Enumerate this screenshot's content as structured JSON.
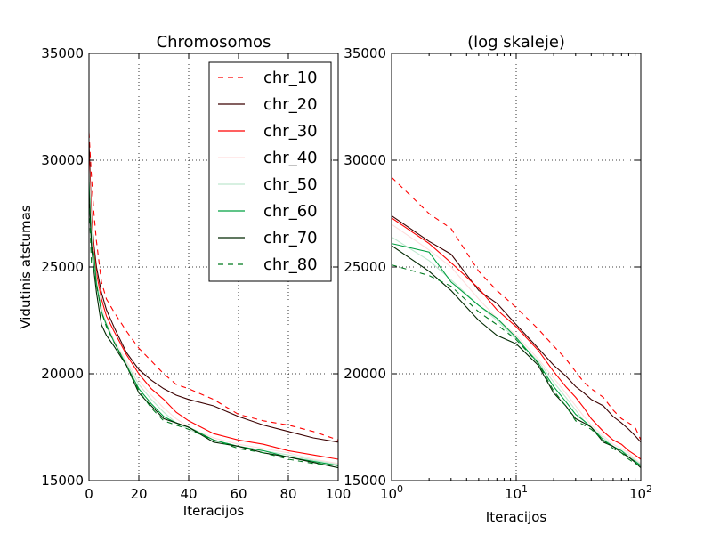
{
  "chart_data": [
    {
      "type": "line",
      "title": "Chromosomos",
      "xlabel": "Iteracijos",
      "ylabel": "Vidutinis atstumas",
      "xscale": "linear",
      "xlim": [
        0,
        100
      ],
      "ylim": [
        15000,
        35000
      ],
      "xticks": [
        "0",
        "20",
        "40",
        "60",
        "80",
        "100"
      ],
      "yticks": [
        "15000",
        "20000",
        "25000",
        "30000",
        "35000"
      ],
      "grid": true,
      "legend_position": "top-right",
      "x": [
        0,
        1,
        2,
        3,
        5,
        7,
        10,
        15,
        20,
        25,
        30,
        35,
        40,
        50,
        60,
        70,
        80,
        90,
        100
      ],
      "series": [
        {
          "name": "chr_10",
          "color": "#ff0000",
          "dash": "dashed",
          "values": [
            31300,
            29200,
            27500,
            26200,
            24300,
            23500,
            22900,
            22000,
            21200,
            20600,
            20000,
            19500,
            19300,
            18800,
            18100,
            17800,
            17600,
            17300,
            16900
          ]
        },
        {
          "name": "chr_20",
          "color": "#3b0000",
          "dash": "solid",
          "values": [
            30900,
            27400,
            26000,
            25000,
            23800,
            23000,
            22200,
            21000,
            20200,
            19700,
            19300,
            19000,
            18800,
            18500,
            18000,
            17600,
            17300,
            17000,
            16800
          ]
        },
        {
          "name": "chr_30",
          "color": "#ff0000",
          "dash": "solid",
          "values": [
            30200,
            27300,
            25800,
            24700,
            23500,
            22700,
            22000,
            20900,
            20000,
            19300,
            18800,
            18200,
            17800,
            17200,
            16900,
            16700,
            16400,
            16200,
            16000
          ]
        },
        {
          "name": "chr_40",
          "color": "#ffdede",
          "dash": "solid",
          "values": [
            29800,
            27000,
            25500,
            24500,
            23200,
            22400,
            21600,
            20600,
            19700,
            19000,
            18400,
            17900,
            17500,
            17000,
            16700,
            16500,
            16300,
            16000,
            15800
          ]
        },
        {
          "name": "chr_50",
          "color": "#bfe8cf",
          "dash": "solid",
          "values": [
            29500,
            26800,
            25300,
            24300,
            23000,
            22200,
            21500,
            20500,
            19500,
            18800,
            18200,
            17700,
            17400,
            16900,
            16600,
            16400,
            16200,
            15950,
            15750
          ]
        },
        {
          "name": "chr_60",
          "color": "#00a040",
          "dash": "solid",
          "values": [
            29000,
            26000,
            25600,
            24200,
            22900,
            22300,
            21500,
            20400,
            19300,
            18600,
            18000,
            17700,
            17500,
            16900,
            16600,
            16400,
            16100,
            15900,
            15700
          ]
        },
        {
          "name": "chr_70",
          "color": "#002800",
          "dash": "solid",
          "values": [
            28500,
            26000,
            24800,
            23800,
            22300,
            21800,
            21300,
            20400,
            19100,
            18500,
            17900,
            17700,
            17500,
            16800,
            16600,
            16300,
            16100,
            15850,
            15600
          ]
        },
        {
          "name": "chr_80",
          "color": "#007a1f",
          "dash": "dashed",
          "values": [
            28200,
            25100,
            24900,
            24200,
            22900,
            22200,
            21500,
            20400,
            19200,
            18400,
            17800,
            17600,
            17400,
            16900,
            16500,
            16300,
            16000,
            15800,
            15700
          ]
        }
      ]
    },
    {
      "type": "line",
      "title": "(log skaleje)",
      "xlabel": "Iteracijos",
      "xscale": "log",
      "xlim": [
        1,
        100
      ],
      "ylim": [
        15000,
        35000
      ],
      "xticks": [
        {
          "base": "10",
          "exp": "0"
        },
        {
          "base": "10",
          "exp": "1"
        },
        {
          "base": "10",
          "exp": "2"
        }
      ],
      "yticks": [
        "15000",
        "20000",
        "25000",
        "30000",
        "35000"
      ],
      "grid": true,
      "x": [
        1,
        2,
        3,
        5,
        7,
        10,
        15,
        20,
        25,
        30,
        35,
        40,
        50,
        60,
        70,
        80,
        90,
        100
      ],
      "series": [
        {
          "name": "chr_10",
          "color": "#ff0000",
          "dash": "dashed",
          "values": [
            29200,
            27500,
            26800,
            24800,
            23900,
            23100,
            22100,
            21300,
            20700,
            20100,
            19600,
            19300,
            18900,
            18300,
            17900,
            17700,
            17500,
            16900
          ]
        },
        {
          "name": "chr_20",
          "color": "#3b0000",
          "dash": "solid",
          "values": [
            27400,
            26200,
            25600,
            23900,
            23300,
            22300,
            21200,
            20400,
            19900,
            19400,
            19100,
            18800,
            18500,
            18000,
            17700,
            17400,
            17100,
            16800
          ]
        },
        {
          "name": "chr_30",
          "color": "#ff0000",
          "dash": "solid",
          "values": [
            27300,
            26100,
            25200,
            24000,
            23000,
            22200,
            21100,
            20100,
            19400,
            18900,
            18400,
            17900,
            17300,
            16900,
            16700,
            16400,
            16200,
            16000
          ]
        },
        {
          "name": "chr_40",
          "color": "#ffdede",
          "dash": "solid",
          "values": [
            27000,
            25800,
            25000,
            23500,
            22600,
            21800,
            20700,
            19800,
            19100,
            18500,
            18000,
            17600,
            17100,
            16700,
            16500,
            16300,
            16000,
            15800
          ]
        },
        {
          "name": "chr_50",
          "color": "#bfe8cf",
          "dash": "solid",
          "values": [
            26400,
            25300,
            24400,
            23200,
            22500,
            21600,
            20600,
            19600,
            18900,
            18300,
            17800,
            17500,
            17000,
            16600,
            16400,
            16200,
            15950,
            15750
          ]
        },
        {
          "name": "chr_60",
          "color": "#00a040",
          "dash": "solid",
          "values": [
            26100,
            25700,
            24300,
            23200,
            22600,
            21700,
            20500,
            19400,
            18700,
            18100,
            17800,
            17500,
            16900,
            16600,
            16400,
            16100,
            15900,
            15700
          ]
        },
        {
          "name": "chr_70",
          "color": "#002800",
          "dash": "solid",
          "values": [
            26000,
            24800,
            23900,
            22500,
            21800,
            21400,
            20400,
            19100,
            18500,
            17900,
            17700,
            17500,
            16800,
            16600,
            16300,
            16100,
            15850,
            15600
          ]
        },
        {
          "name": "chr_80",
          "color": "#007a1f",
          "dash": "dashed",
          "values": [
            25100,
            24600,
            24100,
            22900,
            22300,
            21600,
            20500,
            19200,
            18500,
            17800,
            17600,
            17400,
            16900,
            16500,
            16300,
            16000,
            15800,
            15700
          ]
        }
      ]
    }
  ]
}
